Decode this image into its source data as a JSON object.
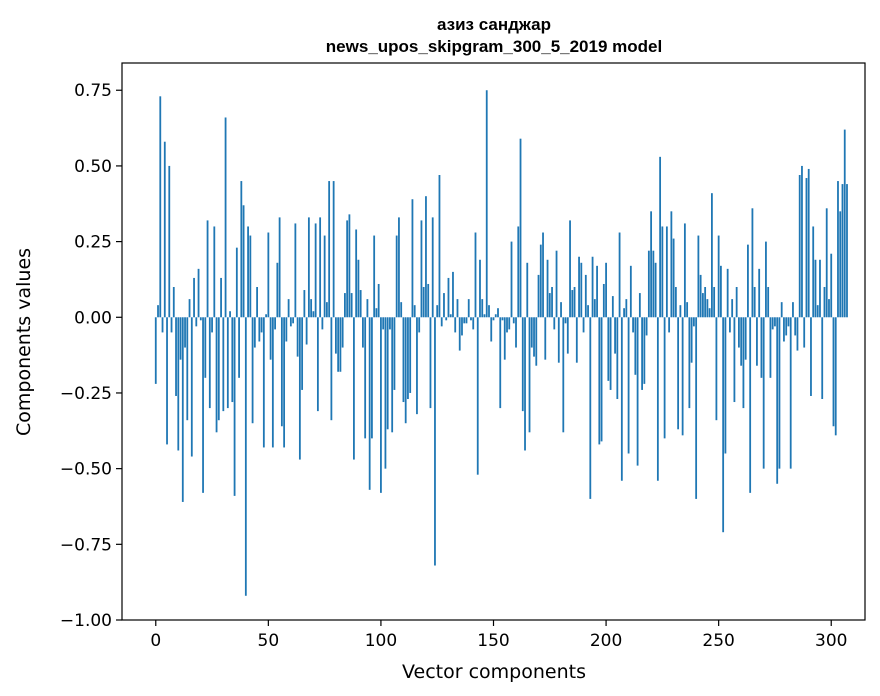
{
  "chart_data": {
    "type": "bar",
    "title": [
      "азиз санджар",
      "news_upos_skipgram_300_5_2019 model"
    ],
    "xlabel": "Vector components",
    "ylabel": "Components values",
    "xlim": [
      -15,
      315
    ],
    "ylim": [
      -1.0,
      0.84
    ],
    "xticks": [
      {
        "value": 0,
        "label": "0"
      },
      {
        "value": 50,
        "label": "50"
      },
      {
        "value": 100,
        "label": "100"
      },
      {
        "value": 150,
        "label": "150"
      },
      {
        "value": 200,
        "label": "200"
      },
      {
        "value": 250,
        "label": "250"
      },
      {
        "value": 300,
        "label": "300"
      }
    ],
    "yticks": [
      {
        "value": 0.75,
        "label": "0.75"
      },
      {
        "value": 0.5,
        "label": "0.50"
      },
      {
        "value": 0.25,
        "label": "0.25"
      },
      {
        "value": 0.0,
        "label": "0.00"
      },
      {
        "value": -0.25,
        "label": "−0.25"
      },
      {
        "value": -0.5,
        "label": "−0.50"
      },
      {
        "value": -0.75,
        "label": "−0.75"
      },
      {
        "value": -1.0,
        "label": "−1.00"
      }
    ],
    "grid": false,
    "bar_color": "#1f77b4",
    "series": [
      {
        "values": [
          -0.22,
          0.04,
          0.73,
          -0.05,
          0.58,
          -0.42,
          0.5,
          -0.05,
          0.1,
          -0.26,
          -0.44,
          -0.14,
          -0.61,
          -0.1,
          -0.34,
          0.06,
          -0.46,
          0.13,
          -0.03,
          0.16,
          -0.01,
          -0.58,
          -0.2,
          0.32,
          -0.3,
          -0.05,
          0.3,
          -0.38,
          -0.34,
          0.13,
          -0.31,
          0.66,
          -0.3,
          0.02,
          -0.28,
          -0.59,
          0.23,
          -0.2,
          0.45,
          0.37,
          -0.92,
          0.3,
          0.27,
          -0.35,
          -0.1,
          0.1,
          -0.08,
          -0.05,
          -0.43,
          0.01,
          0.28,
          -0.14,
          -0.43,
          -0.04,
          0.18,
          0.33,
          -0.36,
          -0.43,
          -0.08,
          0.06,
          -0.03,
          -0.02,
          0.31,
          -0.13,
          -0.47,
          -0.24,
          0.09,
          -0.09,
          0.33,
          0.06,
          0.02,
          0.31,
          -0.31,
          0.33,
          -0.04,
          0.27,
          0.05,
          0.45,
          -0.34,
          0.45,
          -0.12,
          -0.18,
          -0.18,
          -0.1,
          0.08,
          0.32,
          0.34,
          0.08,
          -0.47,
          0.29,
          0.19,
          0.09,
          -0.1,
          -0.4,
          0.06,
          -0.57,
          -0.4,
          0.27,
          0.03,
          0.11,
          -0.58,
          -0.04,
          -0.5,
          -0.37,
          -0.04,
          -0.38,
          -0.24,
          0.27,
          0.33,
          0.05,
          -0.28,
          -0.35,
          -0.27,
          -0.25,
          0.39,
          0.04,
          -0.32,
          -0.05,
          0.32,
          0.1,
          0.4,
          0.11,
          -0.3,
          0.33,
          -0.82,
          0.04,
          0.47,
          -0.03,
          0.08,
          -0.01,
          0.13,
          0.01,
          0.15,
          -0.05,
          0.06,
          -0.11,
          -0.06,
          -0.02,
          -0.02,
          0.06,
          -0.01,
          -0.04,
          0.28,
          -0.52,
          0.19,
          0.06,
          0.01,
          0.75,
          0.04,
          -0.08,
          -0.01,
          0.01,
          0.03,
          -0.3,
          -0.01,
          -0.14,
          -0.05,
          -0.04,
          0.25,
          -0.02,
          -0.1,
          0.3,
          0.59,
          -0.31,
          -0.44,
          0.18,
          -0.38,
          -0.1,
          -0.13,
          -0.16,
          0.14,
          0.24,
          0.28,
          -0.14,
          0.19,
          0.08,
          0.1,
          -0.04,
          0.22,
          -0.15,
          0.05,
          -0.38,
          -0.02,
          -0.12,
          0.32,
          0.09,
          0.1,
          -0.15,
          0.2,
          0.18,
          -0.05,
          0.14,
          0.04,
          -0.6,
          0.2,
          0.06,
          0.17,
          -0.42,
          -0.41,
          0.11,
          0.18,
          -0.21,
          -0.24,
          0.07,
          -0.12,
          -0.27,
          0.28,
          -0.54,
          0.03,
          0.06,
          -0.45,
          0.17,
          -0.05,
          -0.19,
          -0.49,
          0.08,
          -0.24,
          -0.22,
          -0.06,
          0.22,
          0.35,
          0.22,
          0.18,
          -0.54,
          0.53,
          0.3,
          -0.4,
          0.3,
          -0.05,
          0.35,
          0.26,
          0.1,
          -0.37,
          0.04,
          -0.39,
          0.31,
          0.05,
          -0.3,
          -0.15,
          -0.03,
          -0.6,
          0.27,
          0.14,
          0.08,
          0.1,
          0.06,
          0.03,
          0.41,
          0.1,
          -0.34,
          0.27,
          0.17,
          -0.71,
          -0.45,
          0.16,
          -0.05,
          0.06,
          -0.28,
          0.1,
          -0.1,
          -0.16,
          -0.3,
          -0.14,
          0.24,
          -0.58,
          0.36,
          0.1,
          -0.16,
          0.16,
          -0.2,
          -0.5,
          0.25,
          0.1,
          -0.2,
          -0.04,
          -0.03,
          -0.55,
          -0.5,
          0.05,
          -0.08,
          -0.06,
          -0.03,
          -0.5,
          0.05,
          -0.06,
          -0.11,
          0.47,
          0.5,
          -0.1,
          0.46,
          0.49,
          -0.26,
          0.3,
          0.19,
          0.04,
          0.19,
          -0.27,
          0.1,
          0.36,
          0.06,
          0.21,
          -0.36,
          -0.39,
          0.45,
          0.35,
          0.44,
          0.62,
          0.44
        ]
      }
    ]
  }
}
